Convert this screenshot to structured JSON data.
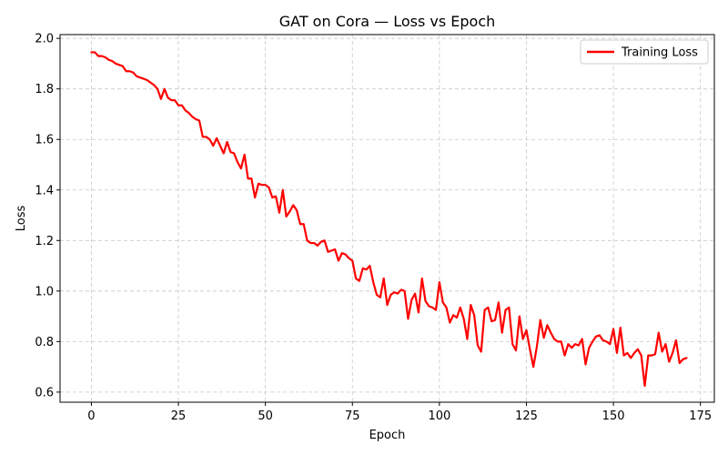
{
  "chart_data": {
    "type": "line",
    "title": "GAT on Cora — Loss vs Epoch",
    "xlabel": "Epoch",
    "ylabel": "Loss",
    "xlim": [
      -9,
      179
    ],
    "ylim": [
      0.56,
      2.015
    ],
    "xticks": [
      0,
      25,
      50,
      75,
      100,
      125,
      150,
      175
    ],
    "yticks": [
      0.6,
      0.8,
      1.0,
      1.2,
      1.4,
      1.6,
      1.8,
      2.0
    ],
    "grid": true,
    "legend": "top-right",
    "series": [
      {
        "name": "Training Loss",
        "color": "#ff0000",
        "x": [
          0,
          1,
          2,
          3,
          4,
          5,
          6,
          7,
          8,
          9,
          10,
          11,
          12,
          13,
          14,
          15,
          16,
          17,
          18,
          19,
          20,
          21,
          22,
          23,
          24,
          25,
          26,
          27,
          28,
          29,
          30,
          31,
          32,
          33,
          34,
          35,
          36,
          37,
          38,
          39,
          40,
          41,
          42,
          43,
          44,
          45,
          46,
          47,
          48,
          49,
          50,
          51,
          52,
          53,
          54,
          55,
          56,
          57,
          58,
          59,
          60,
          61,
          62,
          63,
          64,
          65,
          66,
          67,
          68,
          69,
          70,
          71,
          72,
          73,
          74,
          75,
          76,
          77,
          78,
          79,
          80,
          81,
          82,
          83,
          84,
          85,
          86,
          87,
          88,
          89,
          90,
          91,
          92,
          93,
          94,
          95,
          96,
          97,
          98,
          99,
          100,
          101,
          102,
          103,
          104,
          105,
          106,
          107,
          108,
          109,
          110,
          111,
          112,
          113,
          114,
          115,
          116,
          117,
          118,
          119,
          120,
          121,
          122,
          123,
          124,
          125,
          126,
          127,
          128,
          129,
          130,
          131,
          132,
          133,
          134,
          135,
          136,
          137,
          138,
          139,
          140,
          141,
          142,
          143,
          144,
          145,
          146,
          147,
          148,
          149,
          150,
          151,
          152,
          153,
          154,
          155,
          156,
          157,
          158,
          159,
          160,
          161,
          162,
          163,
          164,
          165,
          166,
          167,
          168,
          169,
          170,
          171
        ],
        "values": [
          1.945,
          1.945,
          1.93,
          1.93,
          1.925,
          1.915,
          1.91,
          1.9,
          1.895,
          1.89,
          1.87,
          1.87,
          1.865,
          1.85,
          1.845,
          1.84,
          1.835,
          1.825,
          1.815,
          1.8,
          1.76,
          1.8,
          1.765,
          1.755,
          1.755,
          1.735,
          1.735,
          1.715,
          1.705,
          1.69,
          1.68,
          1.675,
          1.61,
          1.61,
          1.6,
          1.575,
          1.605,
          1.575,
          1.545,
          1.59,
          1.55,
          1.545,
          1.51,
          1.485,
          1.54,
          1.445,
          1.445,
          1.37,
          1.425,
          1.42,
          1.42,
          1.41,
          1.37,
          1.375,
          1.31,
          1.4,
          1.295,
          1.315,
          1.34,
          1.32,
          1.265,
          1.265,
          1.2,
          1.19,
          1.19,
          1.18,
          1.195,
          1.2,
          1.155,
          1.16,
          1.165,
          1.12,
          1.15,
          1.145,
          1.13,
          1.12,
          1.05,
          1.04,
          1.09,
          1.085,
          1.1,
          1.035,
          0.985,
          0.975,
          1.05,
          0.945,
          0.985,
          0.995,
          0.99,
          1.005,
          1.0,
          0.89,
          0.965,
          0.99,
          0.915,
          1.05,
          0.96,
          0.94,
          0.935,
          0.925,
          1.035,
          0.955,
          0.935,
          0.875,
          0.905,
          0.895,
          0.935,
          0.89,
          0.81,
          0.945,
          0.905,
          0.785,
          0.76,
          0.925,
          0.935,
          0.88,
          0.885,
          0.955,
          0.835,
          0.925,
          0.935,
          0.79,
          0.765,
          0.9,
          0.81,
          0.845,
          0.77,
          0.7,
          0.78,
          0.885,
          0.815,
          0.865,
          0.835,
          0.81,
          0.8,
          0.8,
          0.745,
          0.79,
          0.775,
          0.79,
          0.785,
          0.81,
          0.71,
          0.775,
          0.8,
          0.82,
          0.825,
          0.805,
          0.8,
          0.79,
          0.85,
          0.755,
          0.855,
          0.745,
          0.755,
          0.735,
          0.755,
          0.77,
          0.745,
          0.625,
          0.745,
          0.745,
          0.75,
          0.835,
          0.76,
          0.79,
          0.72,
          0.755,
          0.805,
          0.715,
          0.73,
          0.735
        ]
      }
    ]
  }
}
